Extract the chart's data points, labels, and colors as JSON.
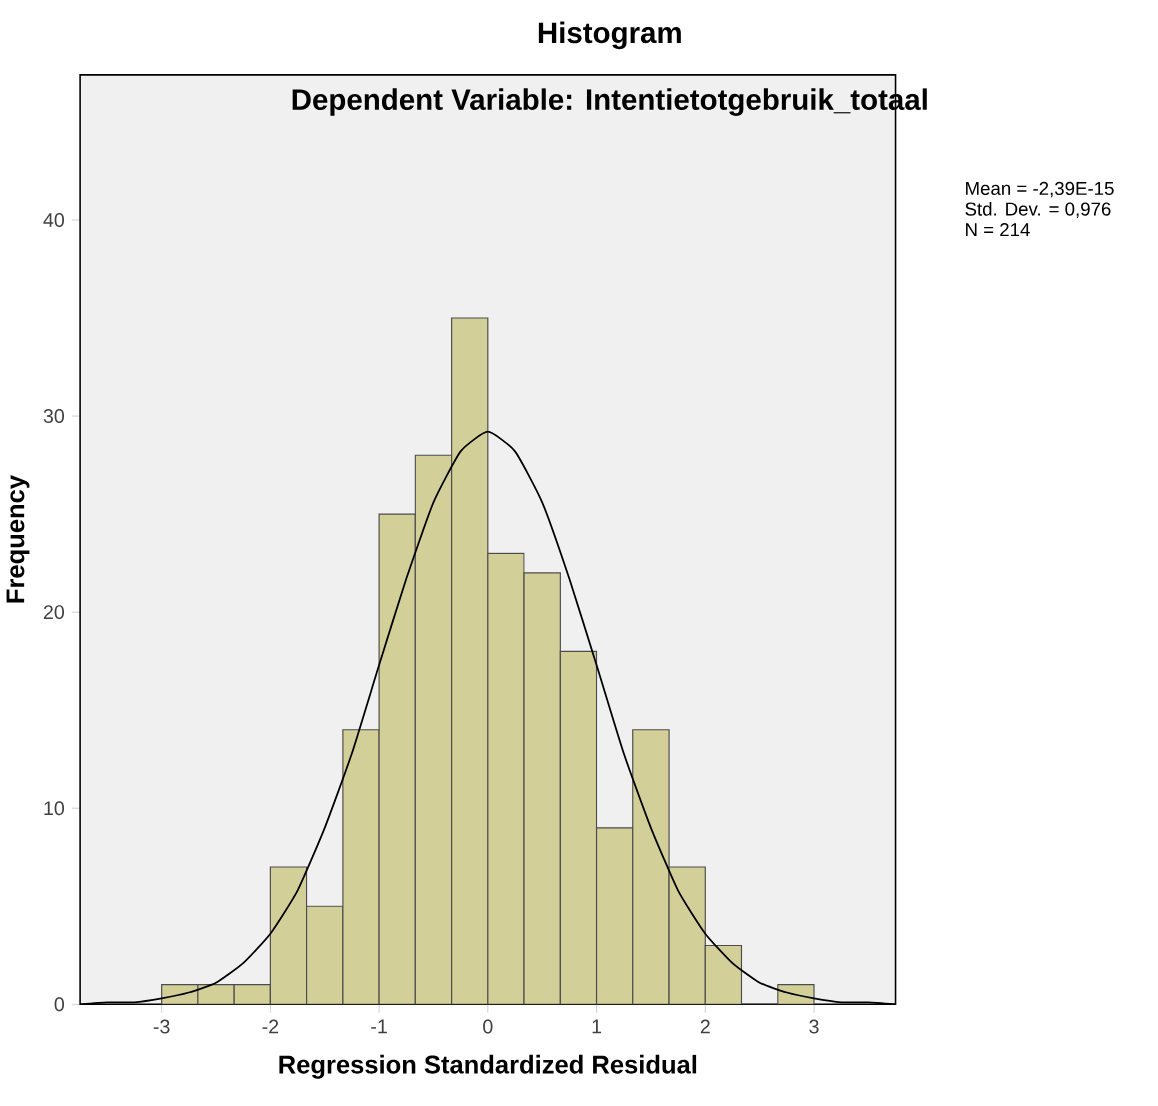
{
  "chart_data": {
    "type": "histogram",
    "title": "Histogram",
    "subtitle": "Dependent Variable: Intentietotgebruik_totaal",
    "xlabel": "Regression Standardized Residual",
    "ylabel": "Frequency",
    "annotations": [
      "Mean = -2,39E-15",
      "Std. Dev. = 0,976",
      "N = 214"
    ],
    "series": [
      {
        "color": "#d3cf98",
        "bins": [
          -3,
          -2.667,
          -2.333,
          -2,
          -1.667,
          -1.333,
          -1,
          -0.667,
          -0.333,
          0,
          0.333,
          0.667,
          1,
          1.333,
          1.667,
          2,
          2.333,
          2.667,
          3
        ],
        "values": [
          1,
          1,
          1,
          7,
          5,
          14,
          25,
          28,
          35,
          23,
          22,
          18,
          9,
          14,
          7,
          3,
          0,
          1
        ]
      },
      {
        "type": "line",
        "color": "#000000",
        "x": [
          -3.75,
          -3.5,
          -3.25,
          -3,
          -2.75,
          -2.5,
          -2.25,
          -2,
          -1.75,
          -1.5,
          -1.25,
          -1,
          -0.75,
          -0.5,
          -0.25,
          0,
          0.25,
          0.5,
          0.75,
          1,
          1.25,
          1.5,
          1.75,
          2,
          2.25,
          2.5,
          2.75,
          3,
          3.25,
          3.5,
          3.75
        ],
        "values": [
          0.0,
          0.1,
          0.1,
          0.3,
          0.6,
          1.1,
          2.1,
          3.6,
          5.8,
          9.0,
          12.8,
          17.3,
          21.7,
          25.6,
          28.2,
          29.2,
          28.2,
          25.6,
          21.7,
          17.3,
          12.8,
          9.0,
          5.8,
          3.6,
          2.1,
          1.1,
          0.6,
          0.3,
          0.1,
          0.1,
          0.0
        ]
      }
    ],
    "xlim": [
      -3.75,
      3.75
    ],
    "ylim": [
      0,
      47.4
    ],
    "xticks": [
      -3,
      -2,
      -1,
      0,
      1,
      2,
      3
    ],
    "yticks": [
      0,
      10,
      20,
      30,
      40
    ],
    "grid": false,
    "marker": "none",
    "line_style": "solid"
  }
}
